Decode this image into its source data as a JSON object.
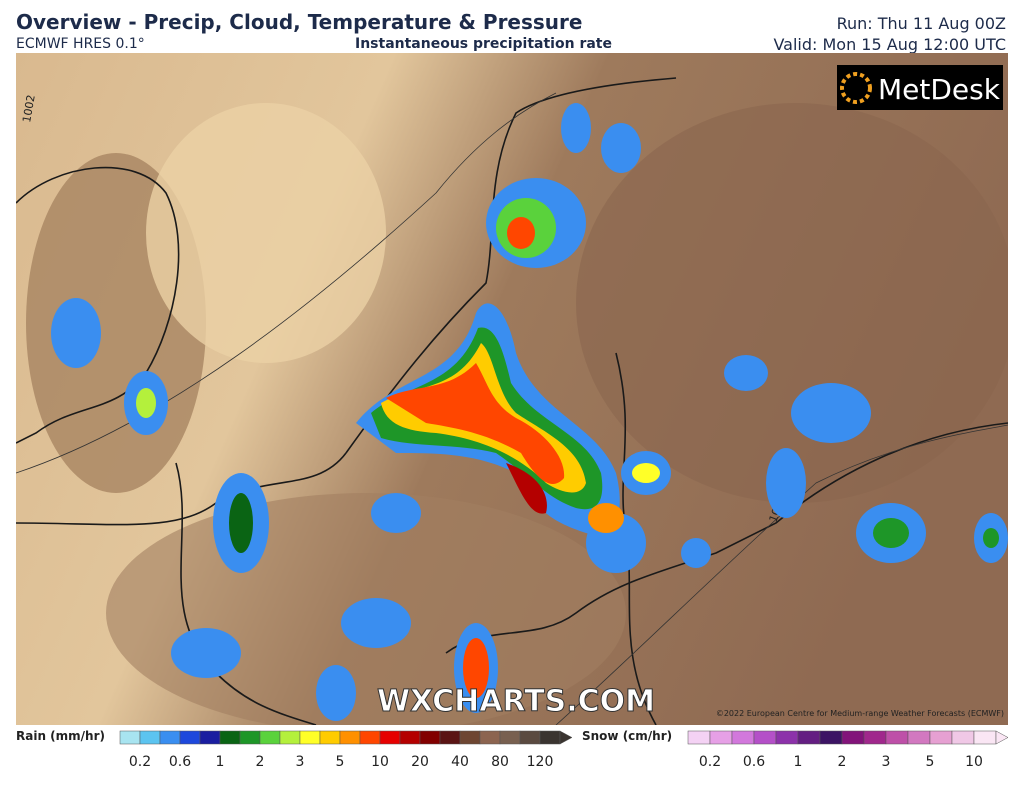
{
  "header": {
    "title": "Overview - Precip, Cloud, Temperature & Pressure",
    "model": "ECMWF HRES 0.1°",
    "subtitle": "Instantaneous precipitation rate",
    "run": "Run: Thu 11 Aug 00Z",
    "valid": "Valid: Mon 15 Aug 12:00 UTC"
  },
  "map": {
    "logo": "MetDesk",
    "watermark": "WXCHARTS.COM",
    "copyright": "©2022 European Centre for Medium-range Weather Forecasts (ECMWF)",
    "isobars": [
      "1002",
      "1006"
    ]
  },
  "rain_legend": {
    "label": "Rain (mm/hr)",
    "ticks": [
      0.2,
      0.6,
      1,
      2,
      3,
      5,
      10,
      20,
      40,
      80,
      120
    ],
    "colors": [
      "#a8e4f0",
      "#5cc4f0",
      "#3a8ef0",
      "#1e48dc",
      "#1a1ea0",
      "#0a6414",
      "#1e9628",
      "#5ad23c",
      "#b4f03c",
      "#ffff28",
      "#ffcc00",
      "#ff9000",
      "#ff4600",
      "#e60000",
      "#b40000",
      "#820000",
      "#5a1414",
      "#6e4632",
      "#8c6450",
      "#786050",
      "#5a4a40",
      "#3a3430"
    ]
  },
  "snow_legend": {
    "label": "Snow (cm/hr)",
    "ticks": [
      0.2,
      0.6,
      1,
      2,
      3,
      5,
      10
    ],
    "colors": [
      "#f4d2f4",
      "#e6a0e6",
      "#d278dc",
      "#b450c8",
      "#8c32aa",
      "#641e82",
      "#3c1464",
      "#82147a",
      "#a0288c",
      "#be50a8",
      "#d278c0",
      "#e6a0d2",
      "#f0c8e6",
      "#fae6f4"
    ]
  }
}
